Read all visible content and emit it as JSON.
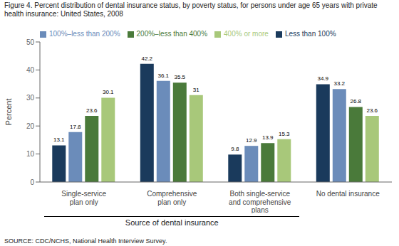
{
  "chart_data": {
    "type": "bar",
    "title": "Figure 4. Percent distribution of dental insurance status, by poverty status, for persons under age 65 years with private\nhealth insurance: United States, 2008",
    "categories": [
      "Single-service\nplan only",
      "Comprehensive\nplan only",
      "Both single-service\nand comprehensive\nplans",
      "No dental insurance"
    ],
    "series": [
      {
        "name": "Less than 100%",
        "color": "#1a3a5c",
        "values": [
          13.1,
          42.2,
          9.8,
          34.9
        ]
      },
      {
        "name": "100%–less than 200%",
        "color": "#6b8cba",
        "values": [
          17.8,
          36.1,
          12.9,
          33.2
        ]
      },
      {
        "name": "200%–less than 400%",
        "color": "#4a7a3a",
        "values": [
          23.6,
          35.5,
          13.9,
          26.8
        ]
      },
      {
        "name": "400% or more",
        "color": "#a8c87a",
        "values": [
          30.1,
          31.0,
          15.3,
          23.6
        ]
      }
    ],
    "ylabel": "Percent",
    "xlabel": "Source of dental insurance",
    "ylim": [
      0,
      50
    ],
    "yticks": [
      0,
      10,
      20,
      30,
      40,
      50
    ],
    "annotations": [
      "SOURCE: CDC/NCHS, National Health Interview Survey."
    ],
    "grid": false,
    "legend": "upper left",
    "data_labels": true
  }
}
